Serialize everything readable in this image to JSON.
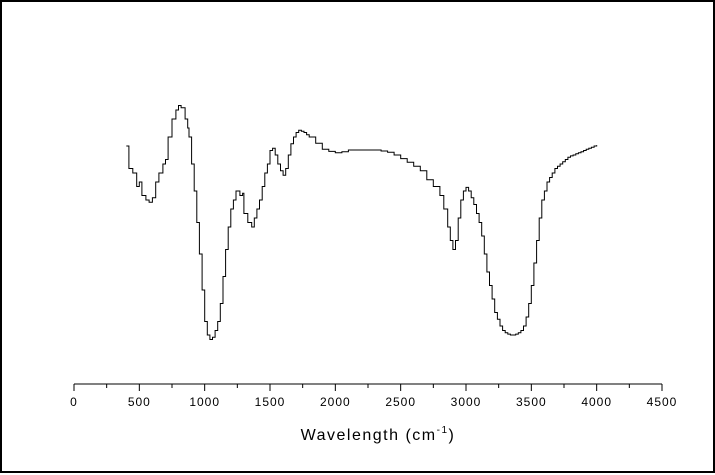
{
  "chart_data": {
    "type": "line",
    "title": "",
    "xlabel": "Wavelength (cm",
    "xlabel_sup": "-1",
    "xlabel_close": ")",
    "ylabel": "",
    "xlim": [
      0,
      4500
    ],
    "x_ticks": [
      0,
      500,
      1000,
      1500,
      2000,
      2500,
      3000,
      3500,
      4000,
      4500
    ],
    "minor_step": 250,
    "y_axis_shown": false,
    "grid": false,
    "line_color": "#000000",
    "series": [
      {
        "x": [
          400,
          420,
          450,
          480,
          500,
          520,
          550,
          575,
          600,
          625,
          650,
          680,
          700,
          720,
          750,
          780,
          800,
          820,
          850,
          870,
          880,
          900,
          920,
          940,
          960,
          980,
          1000,
          1020,
          1040,
          1060,
          1080,
          1100,
          1120,
          1140,
          1160,
          1180,
          1200,
          1220,
          1240,
          1270,
          1290,
          1300,
          1330,
          1360,
          1380,
          1400,
          1420,
          1440,
          1460,
          1480,
          1500,
          1520,
          1540,
          1560,
          1580,
          1600,
          1620,
          1640,
          1660,
          1680,
          1700,
          1720,
          1740,
          1760,
          1780,
          1800,
          1850,
          1900,
          1950,
          2000,
          2050,
          2100,
          2150,
          2200,
          2250,
          2300,
          2350,
          2400,
          2450,
          2500,
          2550,
          2600,
          2650,
          2700,
          2750,
          2800,
          2830,
          2860,
          2880,
          2900,
          2920,
          2940,
          2960,
          2980,
          3000,
          3020,
          3040,
          3060,
          3080,
          3100,
          3120,
          3140,
          3160,
          3180,
          3200,
          3220,
          3240,
          3260,
          3280,
          3300,
          3320,
          3340,
          3360,
          3380,
          3400,
          3420,
          3440,
          3460,
          3480,
          3500,
          3520,
          3540,
          3560,
          3580,
          3600,
          3620,
          3640,
          3660,
          3680,
          3700,
          3720,
          3740,
          3760,
          3780,
          3800,
          3820,
          3840,
          3860,
          3880,
          3900,
          3920,
          3940,
          3960,
          3980,
          4000
        ],
        "y": [
          48,
          43,
          42,
          39,
          40,
          37,
          36,
          35.5,
          36.5,
          40,
          42,
          44,
          45,
          50,
          54,
          56,
          57,
          56.5,
          54,
          52,
          50,
          44,
          38,
          31,
          24,
          16,
          9,
          6,
          5,
          5.5,
          7,
          9,
          13,
          19,
          25,
          30,
          34,
          36,
          38,
          37,
          37.5,
          33,
          31,
          30,
          32,
          34,
          36,
          39,
          42,
          44,
          47,
          47.5,
          46,
          44,
          42.5,
          41.5,
          43,
          46,
          48.5,
          50,
          51,
          51.5,
          51.3,
          51,
          50.5,
          50,
          48.6,
          47.3,
          46.8,
          46.5,
          46.7,
          47.1,
          47.1,
          47.1,
          47.1,
          47.1,
          46.9,
          46.6,
          46,
          45.2,
          44.4,
          43.5,
          42.5,
          40.5,
          39,
          37,
          34,
          30,
          27,
          25,
          27,
          32,
          36,
          38,
          38.8,
          38,
          36.5,
          35,
          33,
          31,
          28,
          24,
          20,
          17,
          14,
          11,
          9.5,
          8,
          7,
          6.5,
          6.2,
          6,
          6,
          6.2,
          6.5,
          7,
          8,
          10,
          13,
          17,
          22,
          27,
          32,
          36,
          38,
          40,
          41,
          42,
          43,
          43.5,
          44,
          44.5,
          45,
          45.5,
          45.8,
          46,
          46.3,
          46.5,
          46.7,
          47,
          47.3,
          47.5,
          47.7,
          48,
          48.2
        ]
      }
    ]
  }
}
